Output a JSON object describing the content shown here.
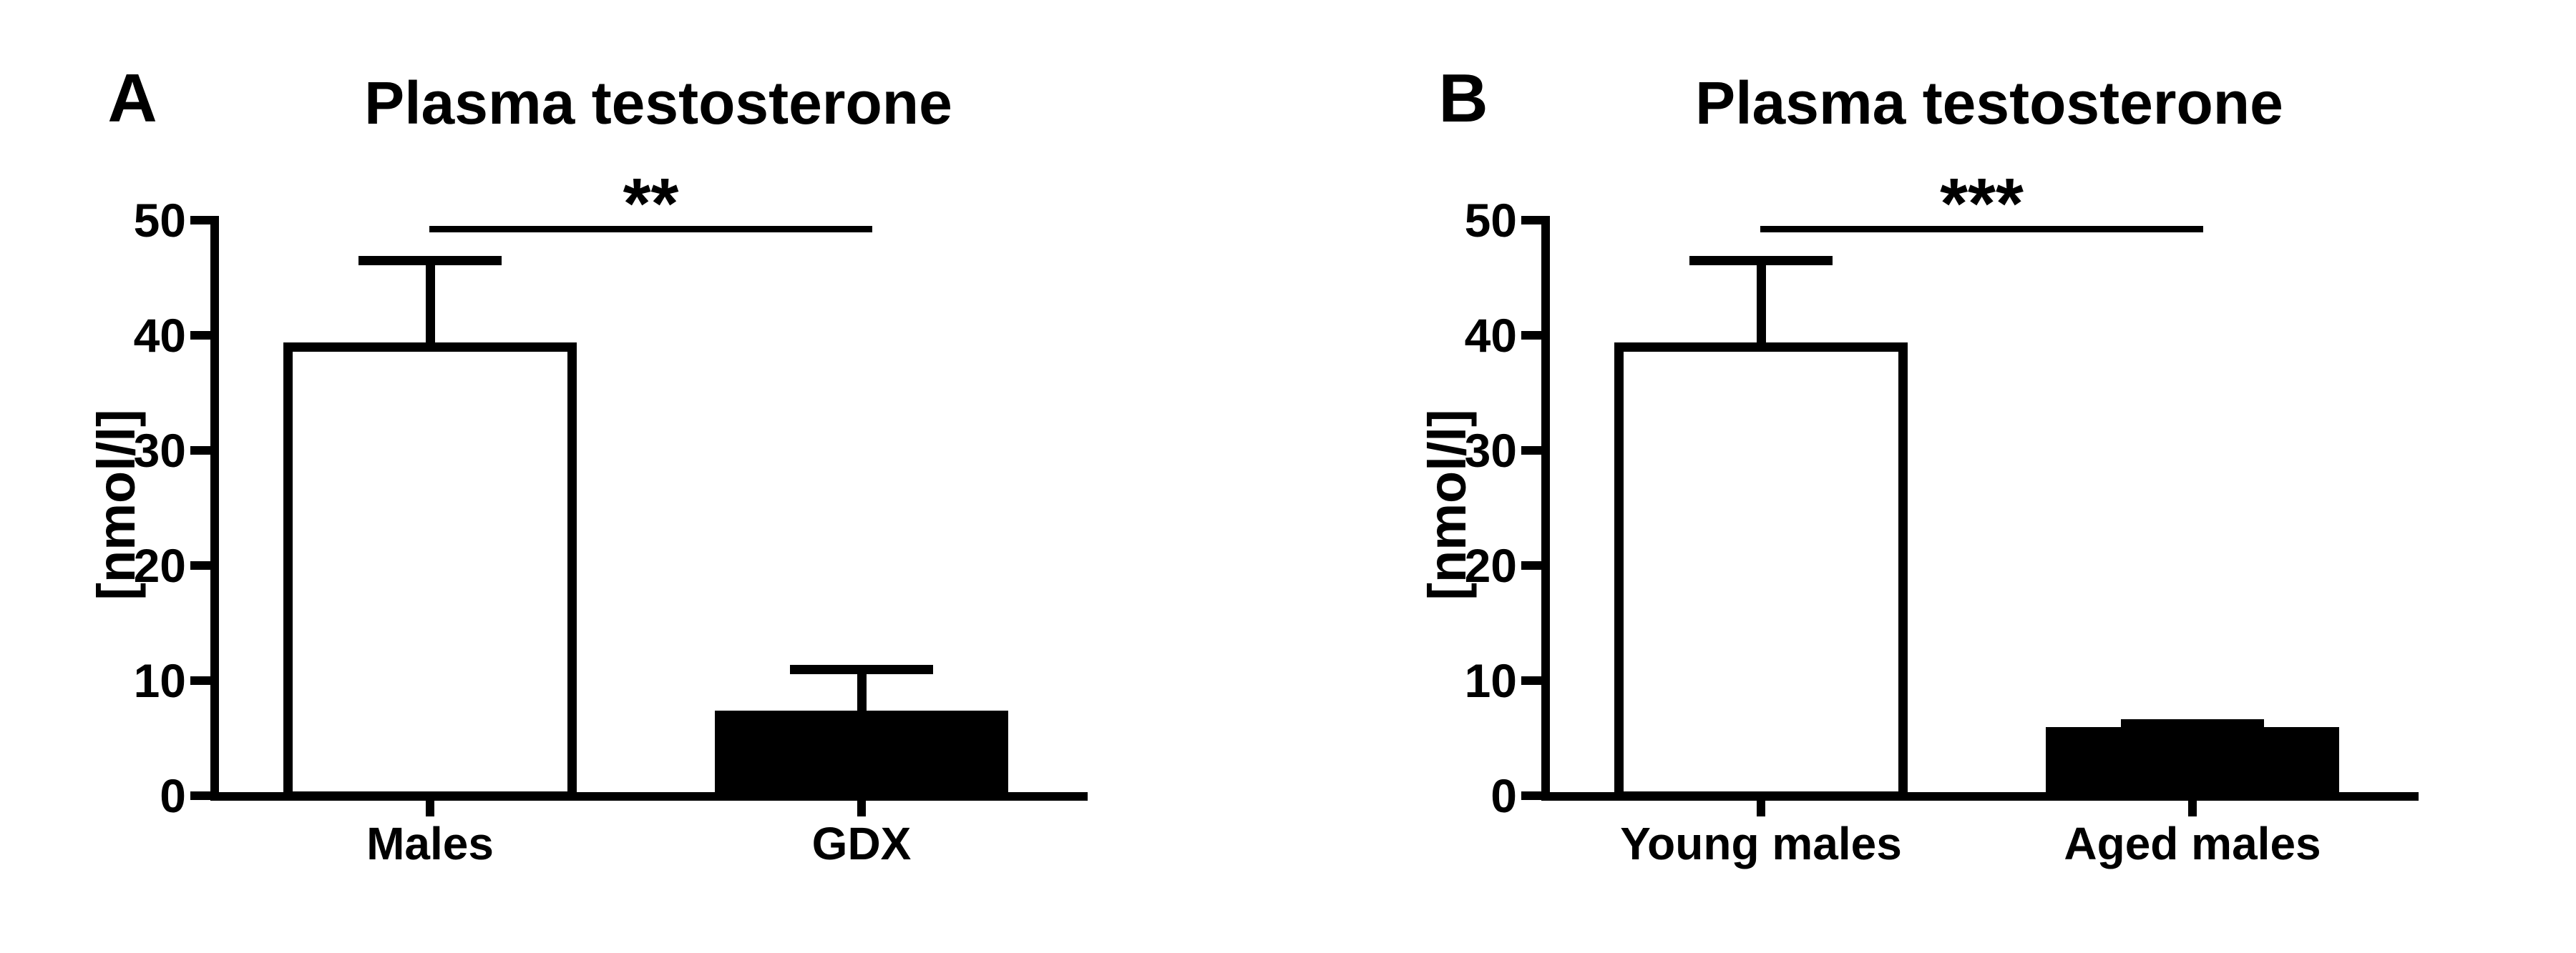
{
  "figure": {
    "background": "#ffffff",
    "ink": "#000000"
  },
  "chart_data": [
    {
      "type": "bar",
      "panel_label": "A",
      "title": "Plasma testosterone",
      "ylabel": "[nmol/l]",
      "xlabel": "",
      "categories": [
        "Males",
        "GDX"
      ],
      "values": [
        39,
        7
      ],
      "errors_plus": [
        7.5,
        4
      ],
      "error_tops": [
        46.5,
        11
      ],
      "bar_fills": [
        "#ffffff",
        "#000000"
      ],
      "bar_edge": "#000000",
      "ylim": [
        0,
        50
      ],
      "yticks": [
        0,
        10,
        20,
        30,
        40,
        50
      ],
      "grid": "off",
      "legend": "none",
      "significance": {
        "label": "**",
        "between": [
          "Males",
          "GDX"
        ],
        "line_y_value": 49.5
      }
    },
    {
      "type": "bar",
      "panel_label": "B",
      "title": "Plasma testosterone",
      "ylabel": "[nmol/l]",
      "xlabel": "",
      "categories": [
        "Young males",
        "Aged males"
      ],
      "values": [
        39,
        5.6
      ],
      "errors_plus": [
        7.5,
        0.65
      ],
      "error_tops": [
        46.5,
        6.25
      ],
      "bar_fills": [
        "#ffffff",
        "#000000"
      ],
      "bar_edge": "#000000",
      "ylim": [
        0,
        50
      ],
      "yticks": [
        0,
        10,
        20,
        30,
        40,
        50
      ],
      "grid": "off",
      "legend": "none",
      "significance": {
        "label": "***",
        "between": [
          "Young males",
          "Aged males"
        ],
        "line_y_value": 49.5
      }
    }
  ]
}
